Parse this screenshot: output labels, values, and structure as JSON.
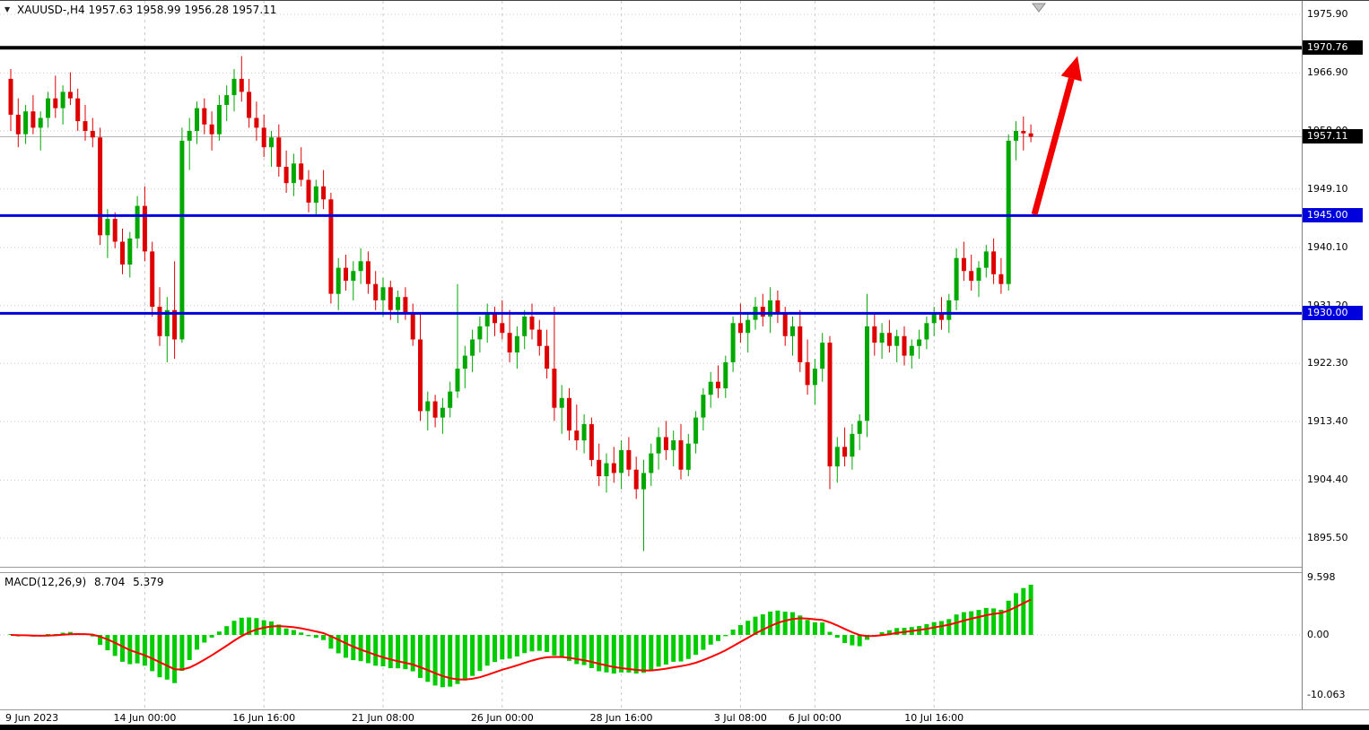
{
  "title": {
    "symbol_period": "XAUUSD-,H4",
    "ohlc": "1957.63 1958.99 1956.28 1957.11"
  },
  "macd_label": {
    "name": "MACD(12,26,9)",
    "main": "8.704",
    "signal": "5.379"
  },
  "chart_data": {
    "type": "candlestick",
    "symbol": "XAUUSD-",
    "timeframe": "H4",
    "title": "XAUUSD- H4 candlestick chart with MACD(12,26,9)",
    "current_price": 1957.11,
    "colors": {
      "up": "#00a800",
      "down": "#de0000",
      "grid": "#c8c8c8"
    },
    "y_axis": {
      "ticks": [
        "1975.90",
        "1966.90",
        "1958.00",
        "1949.10",
        "1940.10",
        "1931.20",
        "1922.30",
        "1913.40",
        "1904.40",
        "1895.50"
      ],
      "markers": [
        {
          "text": "1970.76",
          "price": 1970.76,
          "style": "black"
        },
        {
          "text": "1957.11",
          "price": 1957.11,
          "style": "black"
        },
        {
          "text": "1945.00",
          "price": 1945.0,
          "style": "blue"
        },
        {
          "text": "1930.00",
          "price": 1930.0,
          "style": "blue"
        }
      ]
    },
    "hlines": [
      {
        "name": "resistance-line-1970",
        "price": 1970.76,
        "color": "#000000",
        "width": 4
      },
      {
        "name": "support-line-1945",
        "price": 1945.0,
        "color": "#0000dc",
        "width": 3
      },
      {
        "name": "support-line-1930",
        "price": 1930.0,
        "color": "#0000dc",
        "width": 3
      }
    ],
    "arrow": {
      "from_price": 1945.2,
      "to_price": 1969.5,
      "color": "#f20000"
    },
    "x_labels": [
      {
        "index": 0,
        "label": "9 Jun 2023"
      },
      {
        "index": 18,
        "label": "14 Jun 00:00"
      },
      {
        "index": 34,
        "label": "16 Jun 16:00"
      },
      {
        "index": 50,
        "label": "21 Jun 08:00"
      },
      {
        "index": 66,
        "label": "26 Jun 00:00"
      },
      {
        "index": 82,
        "label": "28 Jun 16:00"
      },
      {
        "index": 98,
        "label": "3 Jul 08:00"
      },
      {
        "index": 108,
        "label": "6 Jul 00:00"
      },
      {
        "index": 124,
        "label": "10 Jul 16:00"
      }
    ],
    "macd": {
      "params": [
        12,
        26,
        9
      ],
      "main_value": 8.704,
      "signal_value": 5.379,
      "histogram_color": "#00cc00",
      "signal_color": "#ff0000",
      "axis": {
        "max": "9.598",
        "zero": "0.00",
        "min": "-10.063"
      }
    },
    "ohlc": [
      [
        1966.0,
        1967.5,
        1958.0,
        1960.5
      ],
      [
        1960.5,
        1963.0,
        1955.5,
        1957.5
      ],
      [
        1957.5,
        1962.0,
        1956.0,
        1961.0
      ],
      [
        1961.0,
        1963.5,
        1957.5,
        1958.5
      ],
      [
        1958.5,
        1961.0,
        1955.0,
        1960.0
      ],
      [
        1960.0,
        1964.0,
        1958.5,
        1963.0
      ],
      [
        1963.0,
        1966.5,
        1960.0,
        1961.5
      ],
      [
        1961.5,
        1965.0,
        1959.0,
        1964.0
      ],
      [
        1964.0,
        1967.0,
        1962.0,
        1963.0
      ],
      [
        1963.0,
        1964.5,
        1958.0,
        1959.5
      ],
      [
        1959.5,
        1962.0,
        1956.5,
        1958.0
      ],
      [
        1958.0,
        1960.0,
        1955.5,
        1957.0
      ],
      [
        1957.0,
        1958.5,
        1940.5,
        1942.0
      ],
      [
        1942.0,
        1946.0,
        1938.5,
        1944.5
      ],
      [
        1944.5,
        1945.5,
        1940.0,
        1941.0
      ],
      [
        1941.0,
        1943.0,
        1936.0,
        1937.5
      ],
      [
        1937.5,
        1942.5,
        1935.5,
        1941.5
      ],
      [
        1941.5,
        1948.0,
        1940.0,
        1946.5
      ],
      [
        1946.5,
        1949.5,
        1938.0,
        1939.5
      ],
      [
        1939.5,
        1941.0,
        1929.5,
        1931.0
      ],
      [
        1931.0,
        1934.0,
        1925.0,
        1926.5
      ],
      [
        1926.5,
        1932.5,
        1922.5,
        1930.5
      ],
      [
        1930.5,
        1938.0,
        1923.0,
        1926.0
      ],
      [
        1926.0,
        1958.5,
        1925.5,
        1956.5
      ],
      [
        1956.5,
        1960.0,
        1952.0,
        1958.0
      ],
      [
        1958.0,
        1962.5,
        1956.0,
        1961.5
      ],
      [
        1961.5,
        1963.0,
        1957.5,
        1959.0
      ],
      [
        1959.0,
        1961.0,
        1955.0,
        1957.5
      ],
      [
        1957.5,
        1963.5,
        1956.5,
        1962.0
      ],
      [
        1962.0,
        1965.0,
        1959.5,
        1963.5
      ],
      [
        1963.5,
        1967.5,
        1961.0,
        1966.0
      ],
      [
        1966.0,
        1969.5,
        1962.5,
        1964.0
      ],
      [
        1964.0,
        1966.0,
        1958.5,
        1960.0
      ],
      [
        1960.0,
        1962.5,
        1956.5,
        1958.5
      ],
      [
        1958.5,
        1960.5,
        1954.0,
        1955.5
      ],
      [
        1955.5,
        1958.0,
        1952.5,
        1957.0
      ],
      [
        1957.0,
        1959.0,
        1951.0,
        1952.5
      ],
      [
        1952.5,
        1955.0,
        1948.5,
        1950.0
      ],
      [
        1950.0,
        1954.5,
        1948.0,
        1953.0
      ],
      [
        1953.0,
        1955.5,
        1949.5,
        1950.5
      ],
      [
        1950.5,
        1952.0,
        1945.5,
        1947.0
      ],
      [
        1947.0,
        1950.5,
        1945.0,
        1949.5
      ],
      [
        1949.5,
        1952.0,
        1946.0,
        1947.5
      ],
      [
        1947.5,
        1948.5,
        1931.5,
        1933.0
      ],
      [
        1933.0,
        1938.5,
        1930.5,
        1937.0
      ],
      [
        1937.0,
        1939.0,
        1933.5,
        1935.0
      ],
      [
        1935.0,
        1938.0,
        1932.0,
        1936.5
      ],
      [
        1936.5,
        1940.0,
        1934.5,
        1938.0
      ],
      [
        1938.0,
        1939.5,
        1933.0,
        1934.5
      ],
      [
        1934.5,
        1936.5,
        1930.5,
        1932.0
      ],
      [
        1932.0,
        1935.5,
        1929.5,
        1934.0
      ],
      [
        1934.0,
        1935.0,
        1929.0,
        1930.5
      ],
      [
        1930.5,
        1933.5,
        1928.5,
        1932.5
      ],
      [
        1932.5,
        1934.0,
        1929.0,
        1930.0
      ],
      [
        1930.0,
        1931.5,
        1925.0,
        1926.0
      ],
      [
        1926.0,
        1930.0,
        1913.5,
        1915.0
      ],
      [
        1915.0,
        1918.0,
        1912.0,
        1916.5
      ],
      [
        1916.5,
        1917.5,
        1912.5,
        1914.0
      ],
      [
        1914.0,
        1917.0,
        1911.5,
        1915.5
      ],
      [
        1915.5,
        1919.5,
        1914.0,
        1918.0
      ],
      [
        1918.0,
        1934.5,
        1917.0,
        1921.5
      ],
      [
        1921.5,
        1925.0,
        1918.5,
        1923.5
      ],
      [
        1923.5,
        1927.5,
        1921.0,
        1926.0
      ],
      [
        1926.0,
        1929.5,
        1924.0,
        1928.0
      ],
      [
        1928.0,
        1931.5,
        1925.5,
        1930.0
      ],
      [
        1930.0,
        1931.0,
        1926.5,
        1928.5
      ],
      [
        1928.5,
        1932.0,
        1926.0,
        1927.0
      ],
      [
        1927.0,
        1930.5,
        1922.5,
        1924.0
      ],
      [
        1924.0,
        1928.0,
        1921.5,
        1926.5
      ],
      [
        1926.5,
        1930.5,
        1924.5,
        1929.5
      ],
      [
        1929.5,
        1931.5,
        1926.0,
        1927.5
      ],
      [
        1927.5,
        1929.0,
        1923.5,
        1925.0
      ],
      [
        1925.0,
        1927.5,
        1920.0,
        1921.5
      ],
      [
        1921.5,
        1931.0,
        1913.5,
        1915.5
      ],
      [
        1915.5,
        1919.0,
        1911.5,
        1917.0
      ],
      [
        1917.0,
        1918.5,
        1910.5,
        1912.0
      ],
      [
        1912.0,
        1916.0,
        1909.0,
        1910.5
      ],
      [
        1910.5,
        1914.5,
        1908.5,
        1913.0
      ],
      [
        1913.0,
        1914.0,
        1906.5,
        1907.5
      ],
      [
        1907.5,
        1910.0,
        1903.5,
        1905.0
      ],
      [
        1905.0,
        1908.5,
        1902.5,
        1907.0
      ],
      [
        1907.0,
        1909.5,
        1904.0,
        1905.5
      ],
      [
        1905.5,
        1910.5,
        1903.0,
        1909.0
      ],
      [
        1909.0,
        1911.0,
        1905.0,
        1906.0
      ],
      [
        1906.0,
        1908.0,
        1901.5,
        1903.0
      ],
      [
        1903.0,
        1907.5,
        1893.5,
        1905.5
      ],
      [
        1905.5,
        1910.0,
        1903.5,
        1908.5
      ],
      [
        1908.5,
        1912.5,
        1906.0,
        1911.0
      ],
      [
        1911.0,
        1913.5,
        1907.5,
        1909.0
      ],
      [
        1909.0,
        1912.0,
        1906.5,
        1910.5
      ],
      [
        1910.5,
        1913.0,
        1904.5,
        1906.0
      ],
      [
        1906.0,
        1911.5,
        1905.0,
        1910.0
      ],
      [
        1910.0,
        1915.0,
        1908.5,
        1914.0
      ],
      [
        1914.0,
        1918.5,
        1912.0,
        1917.5
      ],
      [
        1917.5,
        1921.0,
        1915.5,
        1919.5
      ],
      [
        1919.5,
        1922.0,
        1917.0,
        1918.5
      ],
      [
        1918.5,
        1923.5,
        1917.0,
        1922.5
      ],
      [
        1922.5,
        1929.5,
        1921.0,
        1928.5
      ],
      [
        1928.5,
        1931.5,
        1925.5,
        1927.0
      ],
      [
        1927.0,
        1930.0,
        1924.0,
        1929.0
      ],
      [
        1929.0,
        1932.5,
        1927.5,
        1931.0
      ],
      [
        1931.0,
        1933.0,
        1928.0,
        1929.5
      ],
      [
        1929.5,
        1934.0,
        1927.0,
        1932.0
      ],
      [
        1932.0,
        1933.5,
        1928.5,
        1930.0
      ],
      [
        1930.0,
        1931.0,
        1925.0,
        1926.5
      ],
      [
        1926.5,
        1929.5,
        1923.5,
        1928.0
      ],
      [
        1928.0,
        1930.5,
        1921.0,
        1922.5
      ],
      [
        1922.5,
        1926.0,
        1917.5,
        1919.0
      ],
      [
        1919.0,
        1923.0,
        1916.0,
        1921.5
      ],
      [
        1921.5,
        1927.0,
        1919.5,
        1925.5
      ],
      [
        1925.5,
        1926.5,
        1903.0,
        1906.5
      ],
      [
        1906.5,
        1911.0,
        1904.0,
        1909.5
      ],
      [
        1909.5,
        1912.5,
        1906.5,
        1908.0
      ],
      [
        1908.0,
        1913.0,
        1906.0,
        1911.5
      ],
      [
        1911.5,
        1914.5,
        1909.0,
        1913.5
      ],
      [
        1913.5,
        1933.0,
        1911.0,
        1928.0
      ],
      [
        1928.0,
        1930.0,
        1923.5,
        1925.5
      ],
      [
        1925.5,
        1928.5,
        1923.0,
        1927.0
      ],
      [
        1927.0,
        1929.0,
        1924.0,
        1925.0
      ],
      [
        1925.0,
        1927.5,
        1922.5,
        1926.5
      ],
      [
        1926.5,
        1928.0,
        1922.0,
        1923.5
      ],
      [
        1923.5,
        1926.0,
        1921.5,
        1925.0
      ],
      [
        1925.0,
        1927.5,
        1923.0,
        1926.0
      ],
      [
        1926.0,
        1929.5,
        1924.5,
        1928.5
      ],
      [
        1928.5,
        1931.0,
        1926.5,
        1930.0
      ],
      [
        1930.0,
        1932.5,
        1927.5,
        1929.0
      ],
      [
        1929.0,
        1933.0,
        1927.0,
        1932.0
      ],
      [
        1932.0,
        1940.0,
        1930.5,
        1938.5
      ],
      [
        1938.5,
        1941.0,
        1935.0,
        1936.5
      ],
      [
        1936.5,
        1939.0,
        1933.5,
        1935.0
      ],
      [
        1935.0,
        1938.0,
        1932.5,
        1937.0
      ],
      [
        1937.0,
        1940.5,
        1935.5,
        1939.5
      ],
      [
        1939.5,
        1941.5,
        1934.5,
        1936.0
      ],
      [
        1936.0,
        1938.5,
        1933.0,
        1934.5
      ],
      [
        1934.5,
        1957.5,
        1933.5,
        1956.5
      ],
      [
        1956.5,
        1959.5,
        1953.5,
        1958.0
      ],
      [
        1958.0,
        1960.2,
        1955.0,
        1957.63
      ],
      [
        1957.63,
        1958.99,
        1956.28,
        1957.11
      ]
    ]
  }
}
